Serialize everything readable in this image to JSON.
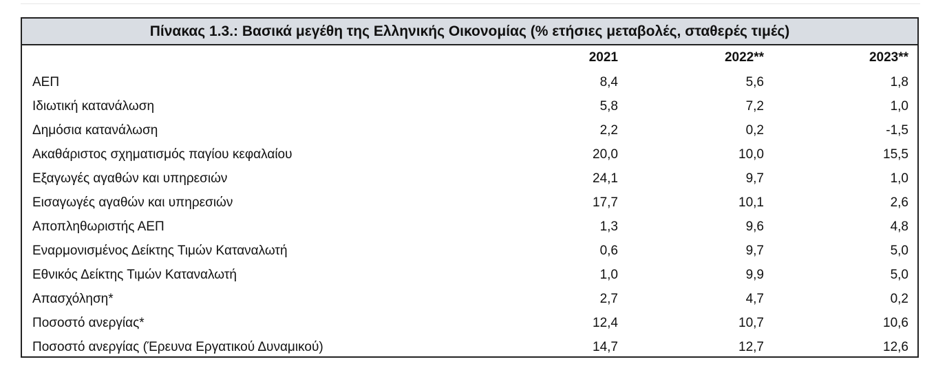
{
  "table": {
    "title": "Πίνακας 1.3.: Βασικά μεγέθη της Ελληνικής Οικονομίας (% ετήσιες μεταβολές, σταθερές τιμές)",
    "header": [
      "2021",
      "2022**",
      "2023**"
    ],
    "rows": [
      [
        "ΑΕΠ",
        "8,4",
        "5,6",
        "1,8"
      ],
      [
        "Ιδιωτική κατανάλωση",
        "5,8",
        "7,2",
        "1,0"
      ],
      [
        "Δημόσια κατανάλωση",
        "2,2",
        "0,2",
        "-1,5"
      ],
      [
        "Ακαθάριστος σχηματισμός παγίου κεφαλαίου",
        "20,0",
        "10,0",
        "15,5"
      ],
      [
        "Εξαγωγές αγαθών και υπηρεσιών",
        "24,1",
        "9,7",
        "1,0"
      ],
      [
        "Εισαγωγές αγαθών και υπηρεσιών",
        "17,7",
        "10,1",
        "2,6"
      ],
      [
        "Αποπληθωριστής ΑΕΠ",
        "1,3",
        "9,6",
        "4,8"
      ],
      [
        "Εναρμονισμένος Δείκτης Τιμών Καταναλωτή",
        "0,6",
        "9,7",
        "5,0"
      ],
      [
        "Εθνικός Δείκτης Τιμών Καταναλωτή",
        "1,0",
        "9,9",
        "5,0"
      ],
      [
        "Απασχόληση*",
        "2,7",
        "4,7",
        "0,2"
      ],
      [
        "Ποσοστό ανεργίας*",
        "12,4",
        "10,7",
        "10,6"
      ],
      [
        "Ποσοστό ανεργίας (Έρευνα Εργατικού Δυναμικού)",
        "14,7",
        "12,7",
        "12,6"
      ]
    ]
  }
}
